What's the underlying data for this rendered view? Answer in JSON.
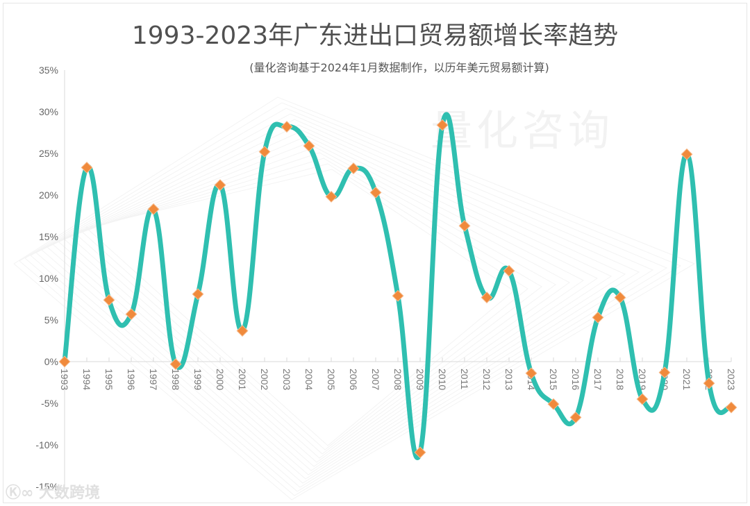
{
  "chart_data": {
    "type": "line",
    "title": "1993-2023年广东进出口贸易额增长率趋势",
    "subtitle": "(量化咨询基于2024年1月数据制作，以历年美元贸易额计算)",
    "xlabel": "",
    "ylabel": "",
    "ylim": [
      -15,
      35
    ],
    "yticks": [
      "35%",
      "30%",
      "25%",
      "20%",
      "15%",
      "10%",
      "5%",
      "0%",
      "-5%",
      "-10%",
      "-15%"
    ],
    "grid": false,
    "legend": null,
    "smooth": true,
    "line_color": "#2fbfb0",
    "marker_color": "#f08a3c",
    "marker": "diamond",
    "categories": [
      "1993",
      "1994",
      "1995",
      "1996",
      "1997",
      "1998",
      "1999",
      "2000",
      "2001",
      "2002",
      "2003",
      "2004",
      "2005",
      "2006",
      "2007",
      "2008",
      "2009",
      "2010",
      "2011",
      "2012",
      "2013",
      "2014",
      "2015",
      "2016",
      "2017",
      "2018",
      "2019",
      "2020",
      "2021",
      "2022",
      "2023"
    ],
    "series": [
      {
        "name": "进出口贸易额增长率",
        "values": [
          0.0,
          23.3,
          7.4,
          5.7,
          18.3,
          -0.3,
          8.1,
          21.2,
          3.7,
          25.2,
          28.2,
          25.9,
          19.8,
          23.2,
          20.3,
          7.9,
          -10.9,
          28.4,
          16.3,
          7.7,
          10.9,
          -1.4,
          -5.1,
          -6.7,
          5.3,
          7.7,
          -4.5,
          -1.3,
          24.9,
          -2.6,
          -5.5
        ]
      }
    ]
  },
  "watermark": "量化咨询",
  "logo_text": "大数跨境"
}
